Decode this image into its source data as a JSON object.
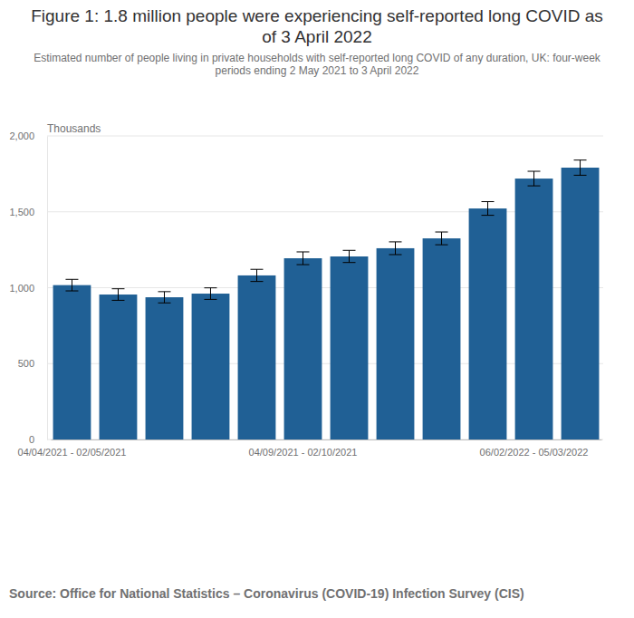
{
  "chart_data": {
    "type": "bar",
    "title": "Figure 1: 1.8 million people were experiencing self-reported long COVID as of 3 April 2022",
    "subtitle": "Estimated number of people living in private households with self-reported long COVID of any duration, UK: four-week periods ending 2 May 2021 to 3 April 2022",
    "y_label": "Thousands",
    "source": "Source: Office for National Statistics – Coronavirus (COVID-19) Infection Survey (CIS)",
    "categories": [
      "04/04/2021 - 02/05/2021",
      null,
      null,
      null,
      null,
      "04/09/2021 - 02/10/2021",
      null,
      null,
      null,
      null,
      "06/02/2022 - 05/03/2022",
      null
    ],
    "values": [
      1017,
      955,
      937,
      961,
      1081,
      1194,
      1206,
      1260,
      1325,
      1522,
      1719,
      1791
    ],
    "errors": [
      38,
      38,
      37,
      38,
      40,
      42,
      40,
      42,
      42,
      45,
      48,
      50
    ],
    "color": "#206095",
    "ylim": [
      0,
      2000
    ],
    "yticks": [
      0,
      500,
      {
        "value": 1000,
        "label": "1,000"
      },
      {
        "value": 1500,
        "label": "1,500"
      },
      {
        "value": 2000,
        "label": "2,000"
      }
    ],
    "grid": true
  }
}
